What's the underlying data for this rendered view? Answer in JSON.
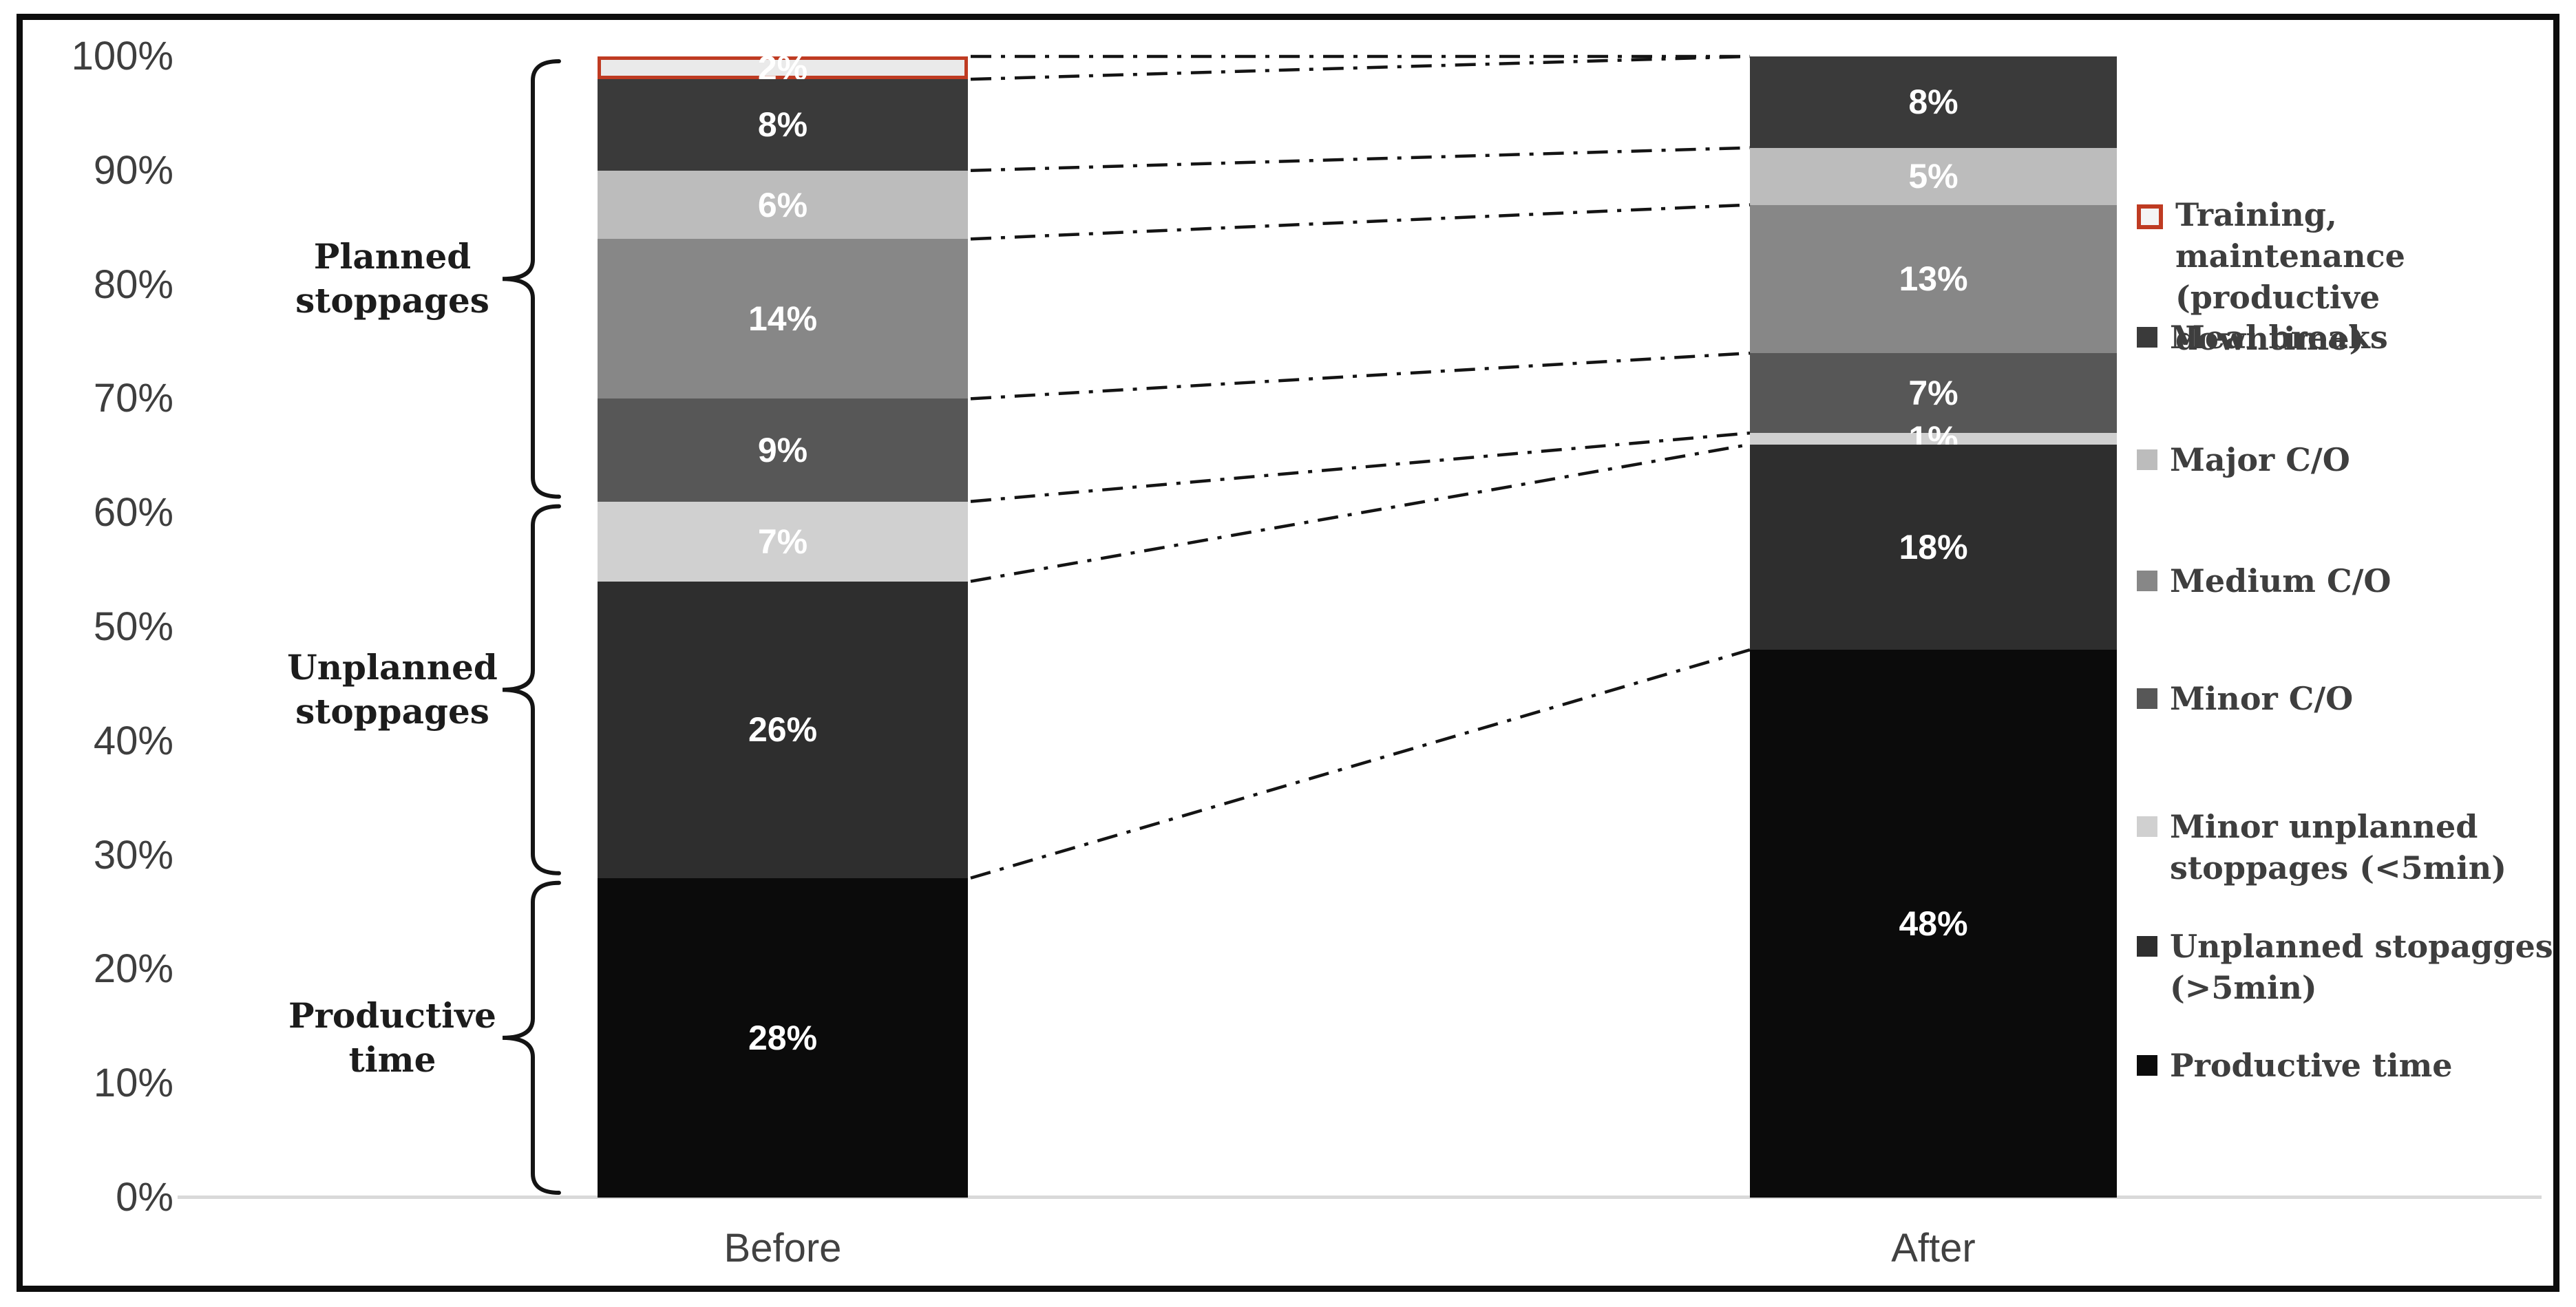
{
  "chart_data": {
    "type": "bar",
    "subtype": "100-percent-stacked-column",
    "title": "",
    "categories": [
      "Before",
      "After"
    ],
    "y_axis": {
      "tick_labels": [
        "0%",
        "10%",
        "20%",
        "30%",
        "40%",
        "50%",
        "60%",
        "70%",
        "80%",
        "90%",
        "100%"
      ],
      "min": 0,
      "max": 100,
      "grid": false
    },
    "series": [
      {
        "name": "Training, maintenance (productive downtime)",
        "color": "#eaeaea",
        "border_color": "#bf3b22",
        "values": {
          "Before": 2,
          "After": 0
        }
      },
      {
        "name": "Meal breaks",
        "color": "#3a3a3a",
        "values": {
          "Before": 8,
          "After": 8
        }
      },
      {
        "name": "Major C/O",
        "color": "#bcbcbc",
        "values": {
          "Before": 6,
          "After": 5
        }
      },
      {
        "name": "Medium C/O",
        "color": "#878787",
        "values": {
          "Before": 14,
          "After": 13
        }
      },
      {
        "name": "Minor C/O",
        "color": "#575757",
        "values": {
          "Before": 9,
          "After": 7
        }
      },
      {
        "name": "Minor unplanned stoppages (<5min)",
        "color": "#d0d0d0",
        "values": {
          "Before": 7,
          "After": 1
        }
      },
      {
        "name": "Unplanned stopagges (>5min)",
        "color": "#2e2e2e",
        "values": {
          "Before": 26,
          "After": 18
        }
      },
      {
        "name": "Productive time",
        "color": "#0b0b0b",
        "values": {
          "Before": 28,
          "After": 48
        }
      }
    ],
    "data_labels": {
      "format": "{value}%",
      "color": "#ffffff",
      "shown_before": [
        "2%",
        "8%",
        "6%",
        "14%",
        "9%",
        "7%",
        "26%",
        "28%"
      ],
      "shown_after": [
        "8%",
        "5%",
        "13%",
        "7%",
        "1%",
        "18%",
        "48%"
      ]
    },
    "group_brackets": [
      {
        "label": "Planned stoppages",
        "label_lines": [
          "Planned",
          "stoppages"
        ],
        "from_pct": 61,
        "to_pct": 100
      },
      {
        "label": "Unplanned stoppages",
        "label_lines": [
          "Unplanned",
          "stoppages"
        ],
        "from_pct": 28,
        "to_pct": 61
      },
      {
        "label": "Productive time",
        "label_lines": [
          "Productive",
          "time"
        ],
        "from_pct": 0,
        "to_pct": 28
      }
    ],
    "legend": {
      "position": "right",
      "order": "same-as-series"
    },
    "connectors": {
      "style": "dash-dot",
      "color": "#141414"
    }
  },
  "colors": {
    "frame_border": "#0d0d0d",
    "axis_line": "#d9d9d9",
    "axis_text": "#3e3e3e",
    "legend_text": "#3e3e3e",
    "bracket_text": "#1c1c1c",
    "training_swatch_fill": "#f4f4f4",
    "training_swatch_border": "#bf3b22"
  }
}
